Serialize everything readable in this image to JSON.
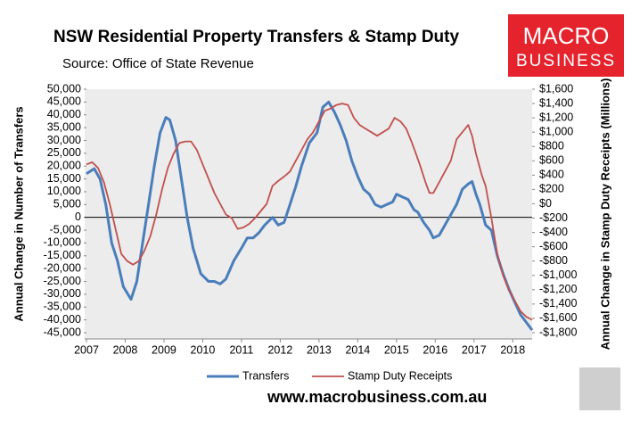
{
  "chart_data": {
    "type": "line",
    "title": "NSW Residential Property Transfers & Stamp Duty",
    "subtitle": "Source: Office of State Revenue",
    "y_label": "Annual Change in Number of Transfers",
    "y2_label": "Annual Change in Stamp Duty Receipts (Millions)",
    "logo": [
      "MACRO",
      "BUSINESS"
    ],
    "website": "www.macrobusiness.com.au",
    "xlim": [
      2007,
      2018.5
    ],
    "xticks": [
      2007,
      2008,
      2009,
      2010,
      2011,
      2012,
      2013,
      2014,
      2015,
      2016,
      2017,
      2018
    ],
    "ylim": [
      -45000,
      50000
    ],
    "yticks": [
      {
        "value": 50000,
        "label": "50,000"
      },
      {
        "value": 45000,
        "label": "45,000"
      },
      {
        "value": 40000,
        "label": "40,000"
      },
      {
        "value": 35000,
        "label": "35,000"
      },
      {
        "value": 30000,
        "label": "30,000"
      },
      {
        "value": 25000,
        "label": "25,000"
      },
      {
        "value": 20000,
        "label": "20,000"
      },
      {
        "value": 15000,
        "label": "15,000"
      },
      {
        "value": 10000,
        "label": "10,000"
      },
      {
        "value": 5000,
        "label": "5,000"
      },
      0,
      {
        "value": -5000,
        "label": "-5,000"
      },
      {
        "value": -10000,
        "label": "-10,000"
      },
      {
        "value": -15000,
        "label": "-15,000"
      },
      {
        "value": -20000,
        "label": "-20,000"
      },
      {
        "value": -25000,
        "label": "-25,000"
      },
      {
        "value": -30000,
        "label": "-30,000"
      },
      {
        "value": -35000,
        "label": "-35,000"
      },
      {
        "value": -40000,
        "label": "-40,000"
      },
      {
        "value": -45000,
        "label": "-45,000"
      }
    ],
    "y2lim": [
      -1800,
      1600
    ],
    "y2ticks": [
      {
        "value": 1600,
        "label": "$1,600"
      },
      {
        "value": 1400,
        "label": "$1,400"
      },
      {
        "value": 1200,
        "label": "$1,200"
      },
      {
        "value": 1000,
        "label": "$1,000"
      },
      {
        "value": 800,
        "label": "$800"
      },
      {
        "value": 600,
        "label": "$600"
      },
      {
        "value": 400,
        "label": "$400"
      },
      {
        "value": 200,
        "label": "$200"
      },
      {
        "value": 0,
        "label": "$0"
      },
      {
        "value": -200,
        "label": "-$200"
      },
      {
        "value": -400,
        "label": "-$400"
      },
      {
        "value": -600,
        "label": "-$600"
      },
      {
        "value": -800,
        "label": "-$800"
      },
      {
        "value": -1000,
        "label": "-$1,000"
      },
      {
        "value": -1200,
        "label": "-$1,200"
      },
      {
        "value": -1400,
        "label": "-$1,400"
      },
      {
        "value": -1600,
        "label": "-$1,600"
      },
      {
        "value": -1800,
        "label": "-$1,800"
      }
    ],
    "series": [
      {
        "name": "Transfers",
        "color": "#4a7ebb",
        "width": 3,
        "x": [
          2007.0,
          2007.2,
          2007.35,
          2007.5,
          2007.65,
          2007.8,
          2007.95,
          2008.15,
          2008.3,
          2008.45,
          2008.6,
          2008.75,
          2008.9,
          2009.05,
          2009.15,
          2009.3,
          2009.45,
          2009.6,
          2009.75,
          2009.95,
          2010.15,
          2010.3,
          2010.45,
          2010.6,
          2010.8,
          2011.0,
          2011.15,
          2011.3,
          2011.45,
          2011.6,
          2011.8,
          2011.95,
          2012.1,
          2012.25,
          2012.4,
          2012.55,
          2012.75,
          2012.95,
          2013.1,
          2013.25,
          2013.4,
          2013.55,
          2013.7,
          2013.85,
          2014.0,
          2014.15,
          2014.3,
          2014.45,
          2014.6,
          2014.75,
          2014.9,
          2015.0,
          2015.15,
          2015.3,
          2015.45,
          2015.55,
          2015.7,
          2015.85,
          2015.95,
          2016.1,
          2016.25,
          2016.4,
          2016.55,
          2016.7,
          2016.85,
          2016.95,
          2017.05,
          2017.15,
          2017.3,
          2017.45,
          2017.6,
          2017.75,
          2017.9,
          2018.05,
          2018.2,
          2018.35,
          2018.5
        ],
        "values": [
          17000,
          19000,
          15000,
          5000,
          -10000,
          -17000,
          -27000,
          -32000,
          -25000,
          -10000,
          5000,
          20000,
          33000,
          39000,
          38000,
          30000,
          15000,
          0,
          -12000,
          -22000,
          -25000,
          -25000,
          -26000,
          -24000,
          -17000,
          -12000,
          -8000,
          -8000,
          -6000,
          -3000,
          0,
          -3000,
          -2000,
          5000,
          12000,
          20000,
          29000,
          33000,
          43000,
          45000,
          41000,
          36000,
          30000,
          22000,
          16000,
          11000,
          9000,
          5000,
          4000,
          5000,
          6000,
          9000,
          8000,
          7000,
          3000,
          2000,
          -2000,
          -5000,
          -8000,
          -7000,
          -3000,
          1000,
          5000,
          11000,
          13000,
          14000,
          9000,
          5000,
          -3000,
          -5000,
          -15000,
          -22000,
          -28000,
          -33000,
          -38000,
          -41000,
          -44000
        ]
      },
      {
        "name": "Stamp Duty Receipts",
        "color": "#c0504d",
        "width": 1.8,
        "axis": "y2",
        "x": [
          2007.0,
          2007.15,
          2007.3,
          2007.45,
          2007.6,
          2007.75,
          2007.9,
          2008.05,
          2008.2,
          2008.35,
          2008.5,
          2008.65,
          2008.8,
          2008.95,
          2009.1,
          2009.25,
          2009.4,
          2009.55,
          2009.7,
          2009.85,
          2010.0,
          2010.15,
          2010.3,
          2010.45,
          2010.6,
          2010.75,
          2010.9,
          2011.05,
          2011.2,
          2011.35,
          2011.5,
          2011.65,
          2011.8,
          2011.95,
          2012.1,
          2012.25,
          2012.4,
          2012.55,
          2012.7,
          2012.85,
          2013.0,
          2013.15,
          2013.3,
          2013.45,
          2013.6,
          2013.75,
          2013.9,
          2014.05,
          2014.2,
          2014.35,
          2014.5,
          2014.65,
          2014.8,
          2014.95,
          2015.1,
          2015.25,
          2015.4,
          2015.5,
          2015.6,
          2015.75,
          2015.85,
          2015.95,
          2016.1,
          2016.25,
          2016.4,
          2016.55,
          2016.7,
          2016.85,
          2016.95,
          2017.05,
          2017.2,
          2017.3,
          2017.45,
          2017.6,
          2017.75,
          2017.9,
          2018.05,
          2018.2,
          2018.35,
          2018.5
        ],
        "values": [
          550,
          580,
          500,
          300,
          0,
          -350,
          -700,
          -800,
          -850,
          -800,
          -650,
          -450,
          -150,
          200,
          500,
          700,
          850,
          870,
          870,
          750,
          550,
          350,
          150,
          0,
          -150,
          -200,
          -350,
          -330,
          -280,
          -200,
          -100,
          0,
          250,
          320,
          380,
          450,
          600,
          750,
          900,
          1000,
          1150,
          1300,
          1330,
          1380,
          1400,
          1380,
          1200,
          1100,
          1050,
          1000,
          950,
          1000,
          1050,
          1200,
          1150,
          1050,
          850,
          700,
          550,
          300,
          150,
          150,
          300,
          450,
          600,
          900,
          1000,
          1100,
          950,
          700,
          400,
          250,
          -200,
          -700,
          -1000,
          -1200,
          -1350,
          -1500,
          -1580,
          -1620
        ]
      }
    ]
  }
}
